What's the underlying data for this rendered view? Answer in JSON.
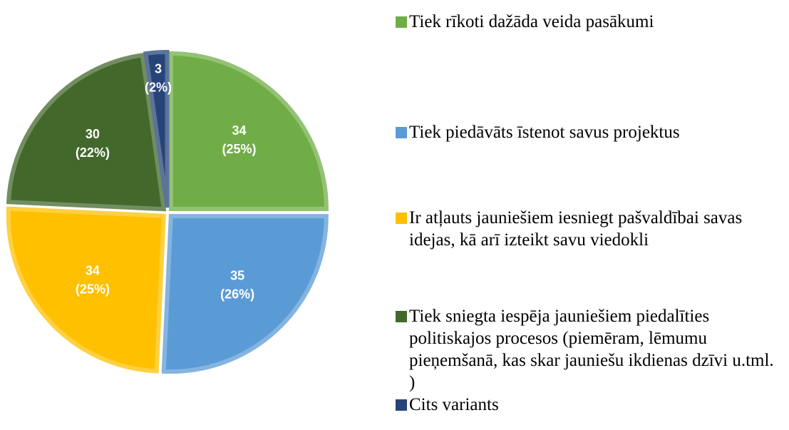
{
  "chart_data": {
    "type": "pie",
    "categories": [
      "Tiek rīkoti dažāda veida pasākumi",
      "Tiek piedāvāts īstenot savus projektus",
      "Ir atļauts jauniešiem iesniegt pašvaldībai savas idejas, kā arī izteikt savu viedokli",
      "Tiek sniegta iespēja jauniešiem piedalīties politiskajos procesos (piemēram, lēmumu pieņemšanā, kas skar jauniešu ikdienas dzīvi u.tml. )",
      "Cits variants"
    ],
    "values": [
      34,
      35,
      34,
      30,
      3
    ],
    "value_labels": [
      [
        "34",
        "(25%)"
      ],
      [
        "35",
        "(26%)"
      ],
      [
        "34",
        "(25%)"
      ],
      [
        "30",
        "(22%)"
      ],
      [
        "3",
        "(2%)"
      ]
    ],
    "colors": [
      "#70ad47",
      "#5b9bd5",
      "#ffc000",
      "#43682b",
      "#264478"
    ],
    "legend": "right"
  }
}
